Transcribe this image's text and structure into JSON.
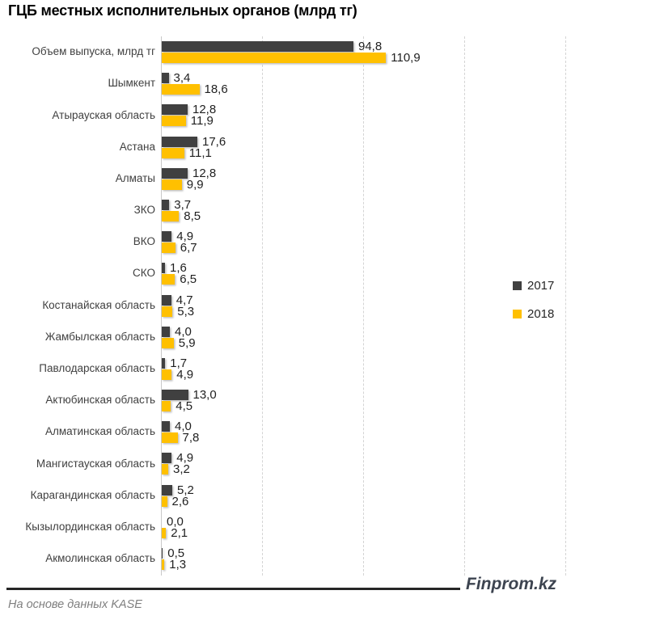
{
  "chart_data": {
    "type": "bar",
    "orientation": "horizontal",
    "title": "ГЦБ местных исполнительных органов (млрд тг)",
    "categories": [
      "Объем выпуска, млрд тг",
      "Шымкент",
      "Атырауская область",
      "Астана",
      "Алматы",
      "ЗКО",
      "ВКО",
      "СКО",
      "Костанайская область",
      "Жамбылская область",
      "Павлодарская область",
      "Актюбинская область",
      "Алматинская область",
      "Мангистауская область",
      "Карагандинская область",
      "Кызылординская область",
      "Акмолинская область"
    ],
    "series": [
      {
        "name": "2017",
        "color": "#404040",
        "values": [
          94.8,
          3.4,
          12.8,
          17.6,
          12.8,
          3.7,
          4.9,
          1.6,
          4.7,
          4.0,
          1.7,
          13.0,
          4.0,
          4.9,
          5.2,
          0.0,
          0.5
        ]
      },
      {
        "name": "2018",
        "color": "#FFC000",
        "values": [
          110.9,
          18.6,
          11.9,
          11.1,
          9.9,
          8.5,
          6.7,
          6.5,
          5.3,
          5.9,
          4.9,
          4.5,
          7.8,
          3.2,
          2.6,
          2.1,
          1.3
        ]
      }
    ],
    "xlim": [
      0,
      200
    ],
    "x_gridlines": [
      50,
      100,
      150,
      200
    ],
    "grid_style": "dashed",
    "decimal_separator": ",",
    "data_labels": true,
    "legend_position": "middle-right"
  },
  "footer": {
    "source": "На основе данных KASE",
    "brand": "Finprom.kz"
  }
}
